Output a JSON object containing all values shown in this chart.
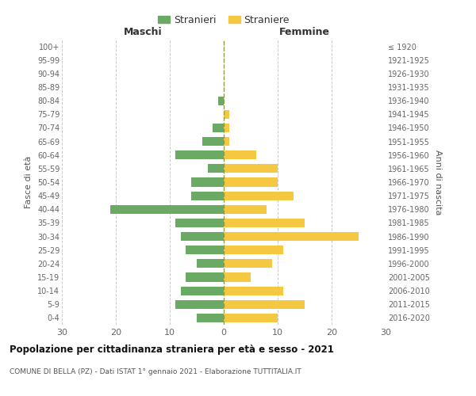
{
  "age_groups_bottom_to_top": [
    "0-4",
    "5-9",
    "10-14",
    "15-19",
    "20-24",
    "25-29",
    "30-34",
    "35-39",
    "40-44",
    "45-49",
    "50-54",
    "55-59",
    "60-64",
    "65-69",
    "70-74",
    "75-79",
    "80-84",
    "85-89",
    "90-94",
    "95-99",
    "100+"
  ],
  "birth_years_bottom_to_top": [
    "2016-2020",
    "2011-2015",
    "2006-2010",
    "2001-2005",
    "1996-2000",
    "1991-1995",
    "1986-1990",
    "1981-1985",
    "1976-1980",
    "1971-1975",
    "1966-1970",
    "1961-1965",
    "1956-1960",
    "1951-1955",
    "1946-1950",
    "1941-1945",
    "1936-1940",
    "1931-1935",
    "1926-1930",
    "1921-1925",
    "≤ 1920"
  ],
  "maschi_bottom_to_top": [
    5,
    9,
    8,
    7,
    5,
    7,
    8,
    9,
    21,
    6,
    6,
    3,
    9,
    4,
    2,
    0,
    1,
    0,
    0,
    0,
    0
  ],
  "femmine_bottom_to_top": [
    10,
    15,
    11,
    5,
    9,
    11,
    25,
    15,
    8,
    13,
    10,
    10,
    6,
    1,
    1,
    1,
    0,
    0,
    0,
    0,
    0
  ],
  "male_color": "#6aaa64",
  "female_color": "#f5c842",
  "background_color": "#ffffff",
  "grid_color": "#cccccc",
  "title": "Popolazione per cittadinanza straniera per età e sesso - 2021",
  "subtitle": "COMUNE DI BELLA (PZ) - Dati ISTAT 1° gennaio 2021 - Elaborazione TUTTITALIA.IT",
  "xlabel_left": "Maschi",
  "xlabel_right": "Femmine",
  "ylabel_left": "Fasce di età",
  "ylabel_right": "Anni di nascita",
  "legend_male": "Stranieri",
  "legend_female": "Straniere",
  "xlim": 30
}
